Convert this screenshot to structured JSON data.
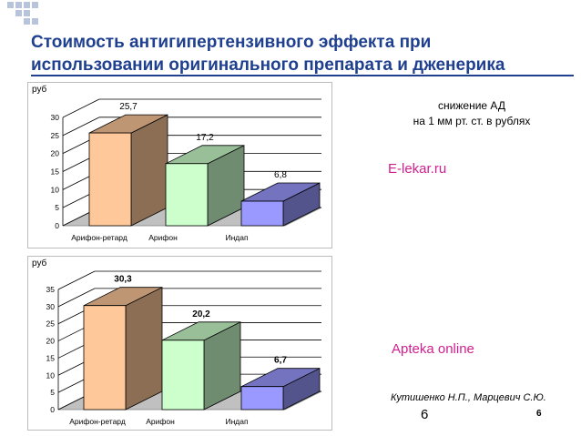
{
  "slide": {
    "title_line1": "Стоимость антигипертензивного эффекта при",
    "title_line2": "использовании оригинального препарата и дженерика",
    "legend_line1": "снижение АД",
    "legend_line2": "на 1 мм рт. ст. в рублях",
    "source1": "E-lekar.ru",
    "source2": "Apteka online",
    "author": "Кутишенко Н.П., Марцевич С.Ю.",
    "page_number": "6",
    "slide_number": "6"
  },
  "colors": {
    "title": "#1f3f8f",
    "source": "#d02090",
    "bar_arifon_retard": "#ffc89a",
    "bar_arifon": "#ccffcc",
    "bar_indap": "#9999ff",
    "floor": "#c0c0c0"
  },
  "chart_data": [
    {
      "type": "bar",
      "ylabel": "руб",
      "categories": [
        "Арифон-ретард",
        "Арифон",
        "Индап"
      ],
      "values": [
        25.7,
        17.2,
        6.8
      ],
      "value_labels": [
        "25,7",
        "17,2",
        "6,8"
      ],
      "ylim": [
        0,
        30
      ],
      "yticks": [
        0,
        5,
        10,
        15,
        20,
        25,
        30
      ],
      "label_bold": false,
      "grid": true,
      "style": "3d"
    },
    {
      "type": "bar",
      "ylabel": "руб",
      "categories": [
        "Арифон-ретард",
        "Арифон",
        "Индап"
      ],
      "values": [
        30.3,
        20.2,
        6.7
      ],
      "value_labels": [
        "30,3",
        "20,2",
        "6,7"
      ],
      "ylim": [
        0,
        35
      ],
      "yticks": [
        0,
        5,
        10,
        15,
        20,
        25,
        30,
        35
      ],
      "label_bold": true,
      "grid": true,
      "style": "3d"
    }
  ]
}
